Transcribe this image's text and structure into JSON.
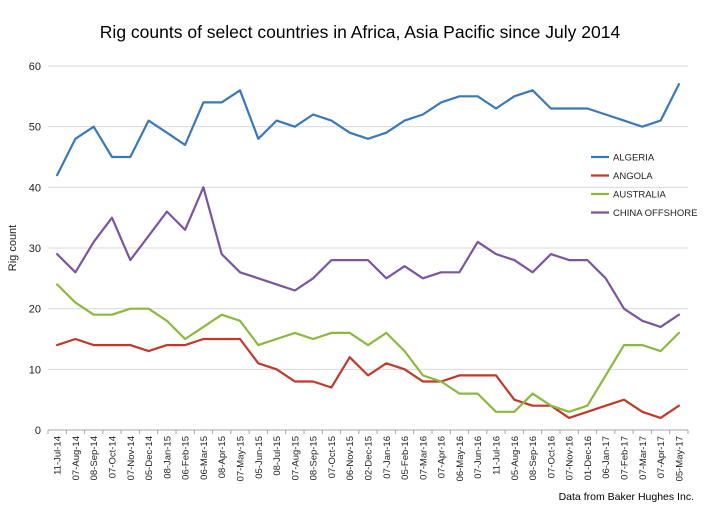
{
  "chart_data": {
    "type": "line",
    "title": "Rig counts of select countries in Africa, Asia Pacific since July 2014",
    "xlabel": "",
    "ylabel": "Rig count",
    "ylim": [
      0,
      60
    ],
    "yticks": [
      0,
      10,
      20,
      30,
      40,
      50,
      60
    ],
    "grid": "horizontal",
    "legend_position": "right",
    "categories": [
      "11-Jul-14",
      "07-Aug-14",
      "08-Sep-14",
      "07-Oct-14",
      "07-Nov-14",
      "05-Dec-14",
      "08-Jan-15",
      "06-Feb-15",
      "06-Mar-15",
      "08-Apr-15",
      "07-May-15",
      "05-Jun-15",
      "08-Jul-15",
      "07-Aug-15",
      "08-Sep-15",
      "07-Oct-15",
      "06-Nov-15",
      "02-Dec-15",
      "07-Jan-16",
      "05-Feb-16",
      "07-Mar-16",
      "07-Apr-16",
      "06-May-16",
      "07-Jun-16",
      "11-Jul-16",
      "05-Aug-16",
      "08-Sep-16",
      "07-Oct-16",
      "07-Nov-16",
      "01-Dec-16",
      "06-Jan-17",
      "07-Feb-17",
      "07-Mar-17",
      "07-Apr-17",
      "05-May-17"
    ],
    "series": [
      {
        "name": "ALGERIA",
        "color": "#3a78b9",
        "values": [
          42,
          48,
          50,
          45,
          45,
          51,
          49,
          47,
          54,
          54,
          56,
          48,
          51,
          50,
          52,
          51,
          49,
          48,
          49,
          51,
          52,
          54,
          55,
          55,
          53,
          55,
          56,
          53,
          53,
          53,
          52,
          51,
          50,
          51,
          57
        ]
      },
      {
        "name": "ANGOLA",
        "color": "#c0392b",
        "values": [
          14,
          15,
          14,
          14,
          14,
          13,
          14,
          14,
          15,
          15,
          15,
          11,
          10,
          8,
          8,
          7,
          12,
          9,
          11,
          10,
          8,
          8,
          9,
          9,
          9,
          5,
          4,
          4,
          2,
          3,
          4,
          5,
          3,
          2,
          4
        ]
      },
      {
        "name": "AUSTRALIA",
        "color": "#8db83e",
        "values": [
          24,
          21,
          19,
          19,
          20,
          20,
          18,
          15,
          17,
          19,
          18,
          14,
          15,
          16,
          15,
          16,
          16,
          14,
          16,
          13,
          9,
          8,
          6,
          6,
          3,
          3,
          6,
          4,
          3,
          4,
          9,
          14,
          14,
          13,
          16
        ]
      },
      {
        "name": "CHINA OFFSHORE",
        "color": "#7b559f",
        "values": [
          29,
          26,
          31,
          35,
          28,
          32,
          36,
          33,
          40,
          29,
          26,
          25,
          24,
          23,
          25,
          28,
          28,
          28,
          25,
          27,
          25,
          26,
          26,
          31,
          29,
          28,
          26,
          29,
          28,
          28,
          25,
          20,
          18,
          17,
          19
        ]
      }
    ],
    "source": "Data from Baker Hughes Inc."
  }
}
